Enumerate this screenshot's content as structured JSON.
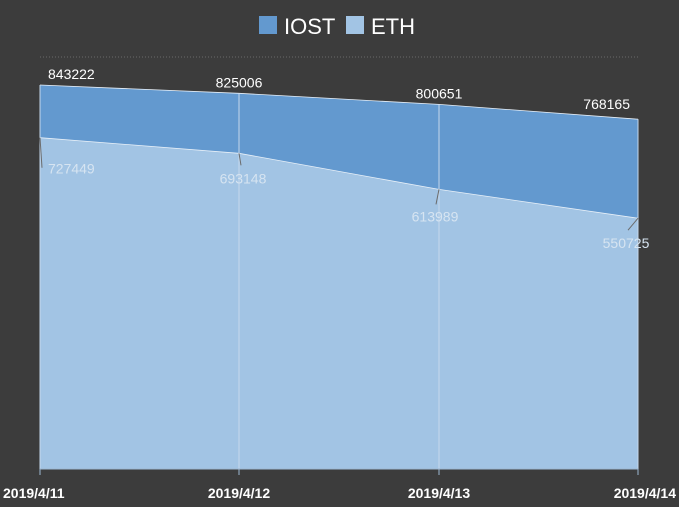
{
  "chart_data": {
    "type": "area",
    "stacked": false,
    "categories": [
      "2019/4/11",
      "2019/4/12",
      "2019/4/13",
      "2019/4/14"
    ],
    "series": [
      {
        "name": "IOST",
        "values": [
          843222,
          825006,
          800651,
          768165
        ],
        "color": "#6399cf",
        "label_color": "#ffffff"
      },
      {
        "name": "ETH",
        "values": [
          727449,
          693148,
          613989,
          550725
        ],
        "color": "#a2c4e4",
        "label_color": "#d6e4f1"
      }
    ],
    "ylim": [
      0,
      843222
    ],
    "legend_position": "top-center",
    "grid": false,
    "background": "#3c3c3c"
  }
}
